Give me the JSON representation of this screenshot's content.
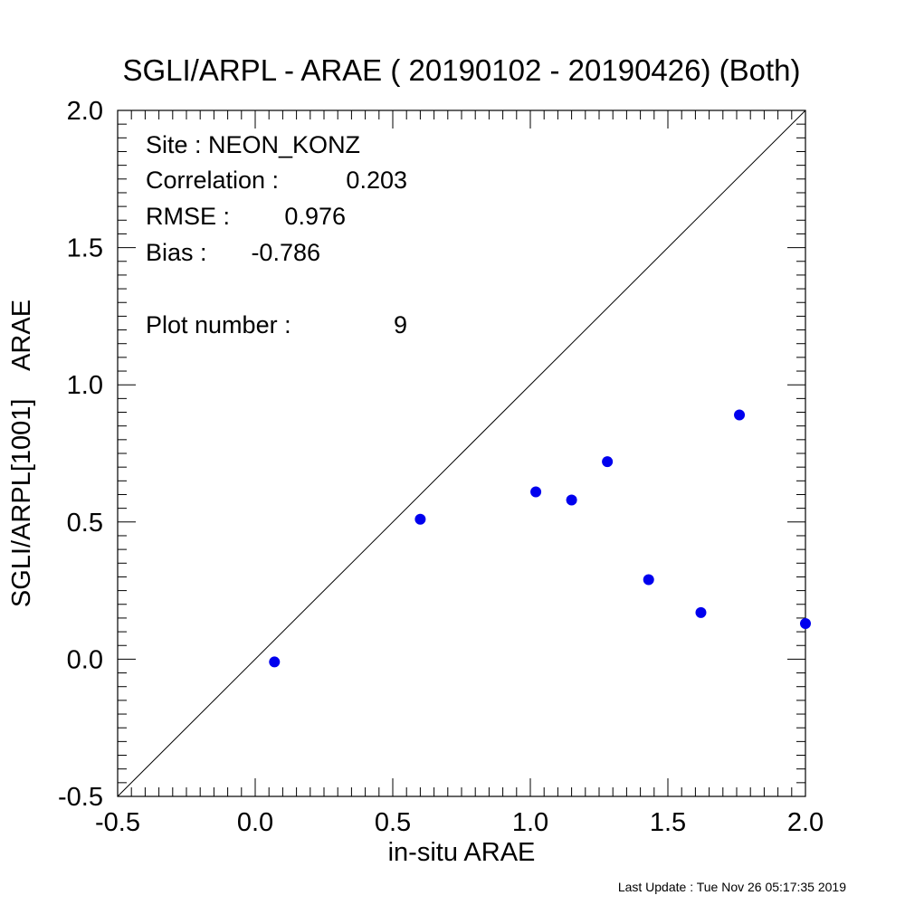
{
  "chart_data": {
    "type": "scatter",
    "title": "SGLI/ARPL - ARAE ( 20190102 - 20190426) (Both)",
    "xlabel": "in-situ ARAE",
    "ylabel": "SGLI/ARPL[1001]    ARAE",
    "xlim": [
      -0.5,
      2.0
    ],
    "ylim": [
      -0.5,
      2.0
    ],
    "xticks": [
      -0.5,
      0.0,
      0.5,
      1.0,
      1.5,
      2.0
    ],
    "yticks": [
      -0.5,
      0.0,
      0.5,
      1.0,
      1.5,
      2.0
    ],
    "xtick_labels": [
      "-0.5",
      "0.0",
      "0.5",
      "1.0",
      "1.5",
      "2.0"
    ],
    "ytick_labels": [
      "-0.5",
      "0.0",
      "0.5",
      "1.0",
      "1.5",
      "2.0"
    ],
    "reference_line": "1:1",
    "point_color": "#0000ee",
    "points": [
      {
        "x": 0.07,
        "y": -0.01
      },
      {
        "x": 0.6,
        "y": 0.51
      },
      {
        "x": 1.02,
        "y": 0.61
      },
      {
        "x": 1.15,
        "y": 0.58
      },
      {
        "x": 1.28,
        "y": 0.72
      },
      {
        "x": 1.43,
        "y": 0.29
      },
      {
        "x": 1.62,
        "y": 0.17
      },
      {
        "x": 1.76,
        "y": 0.89
      },
      {
        "x": 2.0,
        "y": 0.13
      }
    ],
    "stats": {
      "site_label": "Site : NEON_KONZ",
      "correlation_label": "Correlation :",
      "correlation_value": "0.203",
      "rmse_label": "RMSE :",
      "rmse_value": "0.976",
      "bias_label": "Bias :",
      "bias_value": "-0.786",
      "plot_number_label": "Plot number :",
      "plot_number_value": "9"
    }
  },
  "footer": {
    "last_update": "Last Update : Tue Nov 26 05:17:35 2019"
  }
}
